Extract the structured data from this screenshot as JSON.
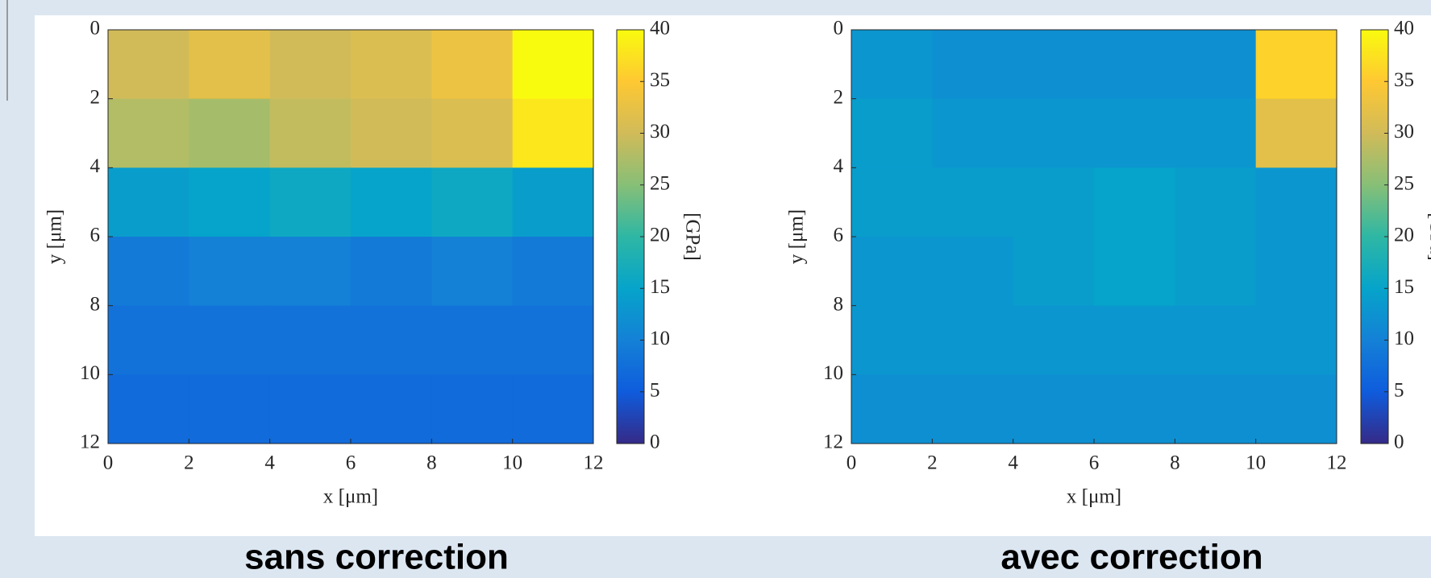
{
  "chart_data": [
    {
      "type": "heatmap",
      "x_label": "x [μm]",
      "y_label": "y [μm]",
      "colorbar_label": "[GPa]",
      "caption": "sans correction",
      "xlim": [
        0,
        12
      ],
      "xticks": [
        0,
        2,
        4,
        6,
        8,
        10,
        12
      ],
      "ylim": [
        12,
        0
      ],
      "yticks": [
        0,
        2,
        4,
        6,
        8,
        10,
        12
      ],
      "clim": [
        0,
        40
      ],
      "cticks": [
        0,
        5,
        10,
        15,
        20,
        25,
        30,
        35,
        40
      ],
      "z": [
        [
          30,
          32,
          30,
          31,
          33,
          40
        ],
        [
          28,
          27,
          29,
          30,
          31,
          38
        ],
        [
          14,
          15,
          16,
          15,
          16,
          14
        ],
        [
          9,
          10,
          10,
          9,
          10,
          9
        ],
        [
          8,
          8,
          8,
          8,
          8,
          8
        ],
        [
          7,
          7,
          7,
          7,
          7,
          7
        ]
      ]
    },
    {
      "type": "heatmap",
      "x_label": "x [μm]",
      "y_label": "y [μm]",
      "colorbar_label": "[GPa]",
      "caption": "avec correction",
      "xlim": [
        0,
        12
      ],
      "xticks": [
        0,
        2,
        4,
        6,
        8,
        10,
        12
      ],
      "ylim": [
        12,
        0
      ],
      "yticks": [
        0,
        2,
        4,
        6,
        8,
        10,
        12
      ],
      "clim": [
        0,
        40
      ],
      "cticks": [
        0,
        5,
        10,
        15,
        20,
        25,
        30,
        35,
        40
      ],
      "z": [
        [
          13,
          12,
          12,
          12,
          12,
          36
        ],
        [
          14,
          13,
          13,
          13,
          13,
          32
        ],
        [
          14,
          14,
          14,
          15,
          14,
          13
        ],
        [
          13,
          13,
          14,
          15,
          14,
          13
        ],
        [
          13,
          13,
          13,
          13,
          13,
          13
        ],
        [
          12,
          12,
          12,
          12,
          12,
          12
        ]
      ]
    }
  ]
}
